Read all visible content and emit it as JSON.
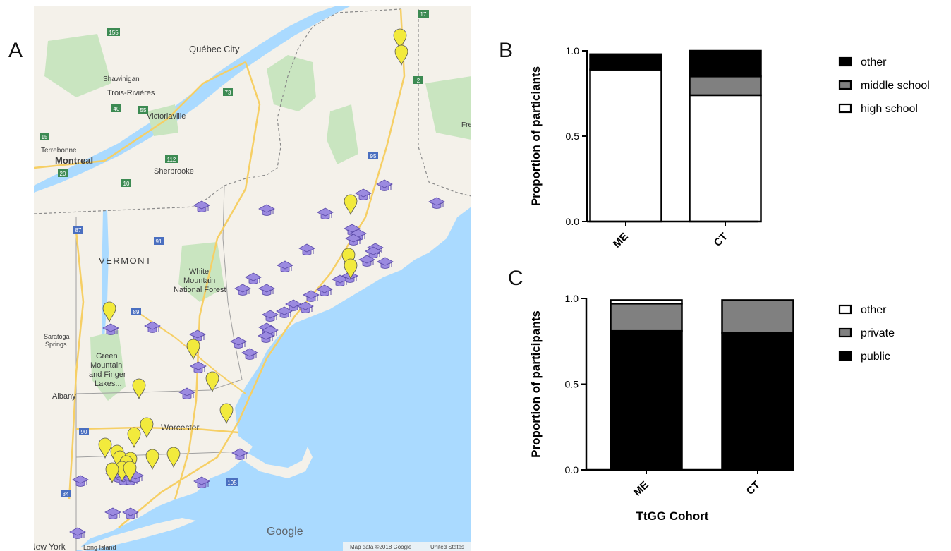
{
  "panels": {
    "a": {
      "letter": "A",
      "map_labels": {
        "quebec_city": "Québec City",
        "shawinigan": "Shawinigan",
        "trois_rivieres": "Trois-Rivières",
        "victoriaville": "Victoriaville",
        "terrebonne": "Terrebonne",
        "montreal": "Montreal",
        "sherbrooke": "Sherbrooke",
        "vermont": "VERMONT",
        "white_mountain_1": "White",
        "white_mountain_2": "Mountain",
        "white_mountain_3": "National Forest",
        "green_mountain_1": "Green",
        "green_mountain_2": "Mountain",
        "green_mountain_3": "and Finger",
        "green_mountain_4": "Lakes...",
        "saratoga_1": "Saratoga",
        "saratoga_2": "Springs",
        "albany": "Albany",
        "worcester": "Worcester",
        "new_york": "New York",
        "long_island": "Long Island",
        "fre": "Fre",
        "google": "Google",
        "attribution": "Map data ©2018 Google",
        "country": "United States",
        "route_155": "155",
        "route_17": "17",
        "route_73": "73",
        "route_55": "55",
        "route_40": "40",
        "route_15": "15",
        "route_20": "20",
        "route_10": "10",
        "route_112": "112",
        "route_95": "95",
        "route_87": "87",
        "route_91": "91",
        "route_89": "89",
        "route_90": "90",
        "route_84": "84",
        "route_195": "195",
        "route_2": "2"
      },
      "marker_colors": {
        "school": "#9b8ae0",
        "pin": "#f2ea3c"
      }
    },
    "b": {
      "letter": "B"
    },
    "c": {
      "letter": "C"
    }
  },
  "chart_data": [
    {
      "type": "bar",
      "stacked": true,
      "panel": "B",
      "categories": [
        "ME",
        "CT"
      ],
      "series": [
        {
          "name": "high school",
          "values": [
            0.89,
            0.74
          ],
          "color": "#ffffff"
        },
        {
          "name": "middle school",
          "values": [
            0.0,
            0.11
          ],
          "color": "#808080"
        },
        {
          "name": "other",
          "values": [
            0.09,
            0.15
          ],
          "color": "#000000"
        }
      ],
      "legend_order": [
        "other",
        "middle school",
        "high school"
      ],
      "legend_position": "right",
      "xlabel": "",
      "ylabel": "Proportion of particiants",
      "ylim": [
        0,
        1.0
      ],
      "yticks": [
        "0.0",
        "0.5",
        "1.0"
      ],
      "grid": false
    },
    {
      "type": "bar",
      "stacked": true,
      "panel": "C",
      "categories": [
        "ME",
        "CT"
      ],
      "series": [
        {
          "name": "public",
          "values": [
            0.81,
            0.8
          ],
          "color": "#000000"
        },
        {
          "name": "private",
          "values": [
            0.16,
            0.19
          ],
          "color": "#808080"
        },
        {
          "name": "other",
          "values": [
            0.02,
            0.0
          ],
          "color": "#ffffff"
        }
      ],
      "legend_order": [
        "other",
        "private",
        "public"
      ],
      "legend_position": "right",
      "xlabel": "TtGG Cohort",
      "ylabel": "Proportion of participants",
      "ylim": [
        0,
        1.0
      ],
      "yticks": [
        "0.0",
        "0.5",
        "1.0"
      ],
      "grid": false
    }
  ]
}
